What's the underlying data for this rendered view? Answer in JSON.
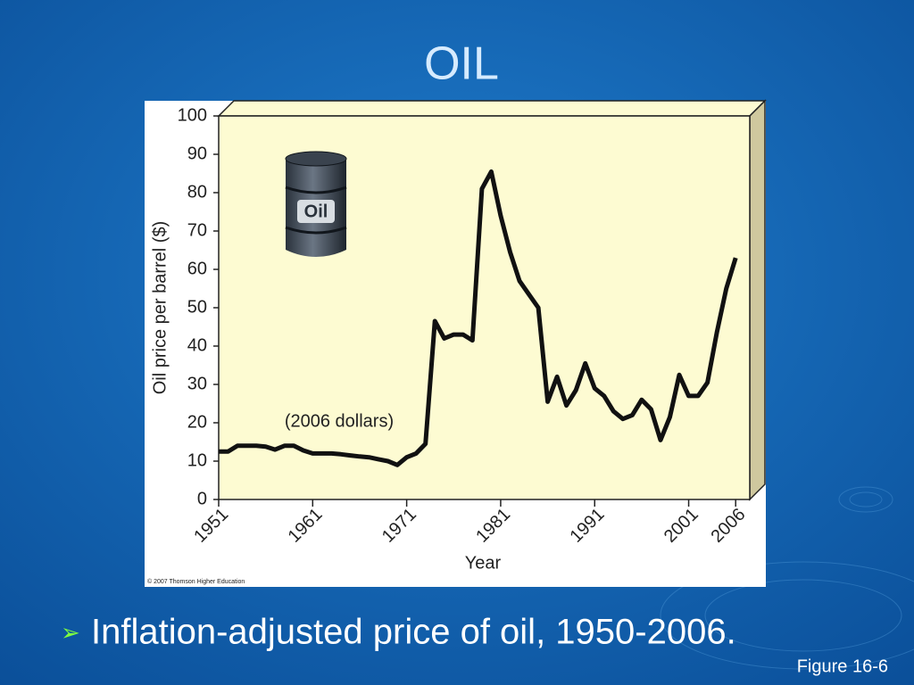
{
  "title": "OIL",
  "chart_data": {
    "type": "line",
    "x": [
      1951,
      1952,
      1953,
      1954,
      1955,
      1956,
      1957,
      1958,
      1959,
      1960,
      1961,
      1962,
      1963,
      1964,
      1965,
      1966,
      1967,
      1968,
      1969,
      1970,
      1971,
      1972,
      1973,
      1974,
      1975,
      1976,
      1977,
      1978,
      1979,
      1980,
      1981,
      1982,
      1983,
      1984,
      1985,
      1986,
      1987,
      1988,
      1989,
      1990,
      1991,
      1992,
      1993,
      1994,
      1995,
      1996,
      1997,
      1998,
      1999,
      2000,
      2001,
      2002,
      2003,
      2004,
      2005,
      2006
    ],
    "values": [
      12.5,
      12.5,
      14,
      14,
      14,
      13.8,
      13,
      14,
      14,
      12.8,
      12,
      12,
      12,
      11.8,
      11.5,
      11.2,
      11,
      10.5,
      10,
      9,
      11,
      12,
      14.5,
      46.5,
      42,
      43,
      43,
      41.5,
      81,
      85.5,
      74,
      64.5,
      57,
      53.5,
      50,
      25.5,
      32,
      24.5,
      28.5,
      35.5,
      29,
      27,
      23,
      21,
      22,
      26,
      23.5,
      15.5,
      21.5,
      32.5,
      27,
      27,
      30.5,
      43.5,
      55,
      63
    ],
    "color": "#111111",
    "xlim": [
      1951,
      2007.5
    ],
    "xticks": [
      1951,
      1961,
      1971,
      1981,
      1991,
      2001,
      2006
    ],
    "ylim": [
      0,
      100
    ],
    "yticks": [
      0,
      10,
      20,
      30,
      40,
      50,
      60,
      70,
      80,
      90,
      100
    ],
    "ylabel": "Oil price per barrel ($)",
    "xlabel": "Year",
    "annotation": "(2006  dollars)",
    "barrel_label": "Oil"
  },
  "copyright": "© 2007 Thomson Higher Education",
  "bullet": "Inflation-adjusted price of oil, 1950-2006.",
  "figure_label": "Figure 16-6"
}
